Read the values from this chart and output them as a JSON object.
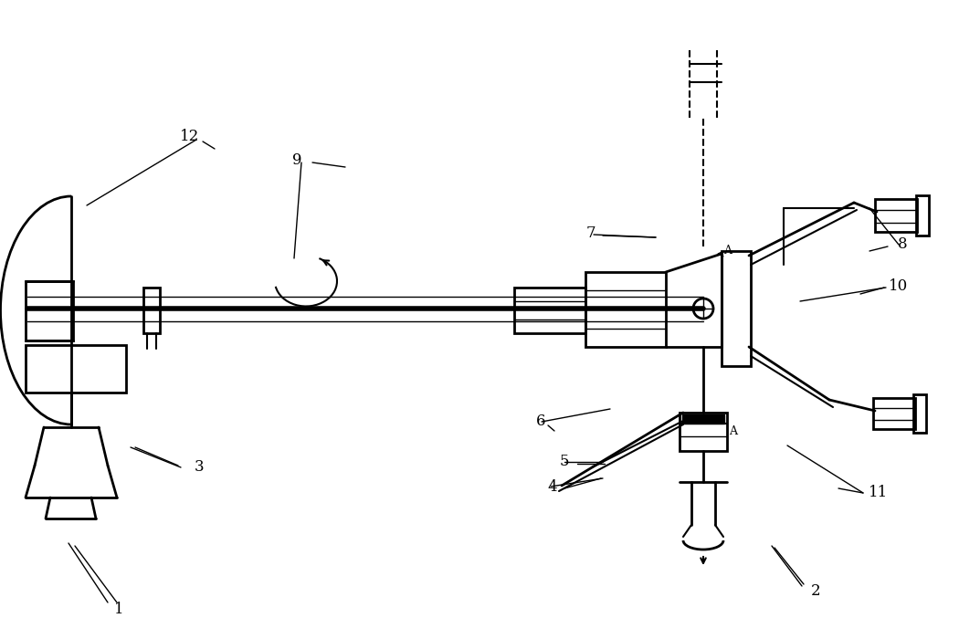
{
  "bg_color": "#ffffff",
  "line_color": "#000000",
  "figsize": [
    10.5,
    7.0
  ],
  "dpi": 100
}
